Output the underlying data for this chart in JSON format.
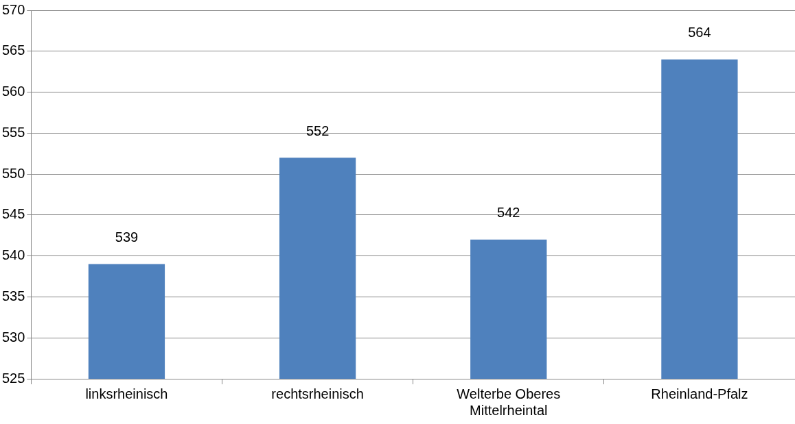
{
  "chart_data": {
    "type": "bar",
    "categories": [
      "linksrheinisch",
      "rechtsrheinisch",
      "Welterbe Oberes Mittelrheintal",
      "Rheinland-Pfalz"
    ],
    "values": [
      539,
      552,
      542,
      564
    ],
    "color": "#4f81bd",
    "ylim": [
      525,
      570
    ],
    "yticks": [
      525,
      530,
      535,
      540,
      545,
      550,
      555,
      560,
      565,
      570
    ],
    "grid": "y",
    "data_labels": true,
    "legend": false
  }
}
